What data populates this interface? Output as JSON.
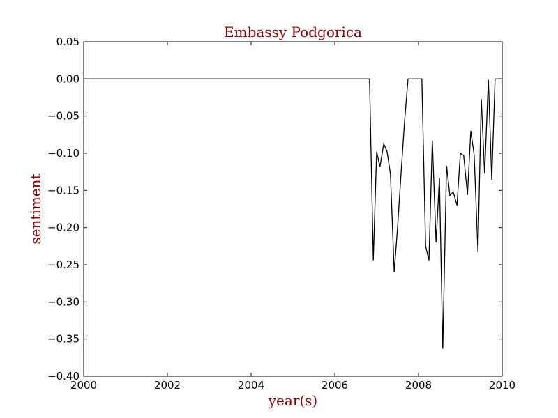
{
  "chart_data": {
    "type": "line",
    "title": "Embassy Podgorica",
    "xlabel": "year(s)",
    "ylabel": "sentiment",
    "xlim": [
      2000,
      2010
    ],
    "ylim": [
      -0.4,
      0.05
    ],
    "grid": false,
    "x_ticks": [
      2000,
      2002,
      2004,
      2006,
      2008,
      2010
    ],
    "y_ticks": [
      0.05,
      0.0,
      -0.05,
      -0.1,
      -0.15,
      -0.2,
      -0.25,
      -0.3,
      -0.35,
      -0.4
    ],
    "x_tick_labels": [
      "2000",
      "2002",
      "2004",
      "2006",
      "2008",
      "2010"
    ],
    "y_tick_labels": [
      "0.05",
      "0.00",
      "−0.05",
      "−0.10",
      "−0.15",
      "−0.20",
      "−0.25",
      "−0.30",
      "−0.35",
      "−0.40"
    ],
    "colors": {
      "title": "#8b0000",
      "line": "#000000",
      "axes": "#000000"
    },
    "series": [
      {
        "x": [
          2000.0,
          2006.83,
          2006.92,
          2007.0,
          2007.08,
          2007.17,
          2007.25,
          2007.33,
          2007.42,
          2007.5,
          2007.58,
          2007.67,
          2007.75,
          2007.83,
          2007.92,
          2008.0,
          2008.08,
          2008.17,
          2008.25,
          2008.33,
          2008.42,
          2008.5,
          2008.58,
          2008.67,
          2008.75,
          2008.83,
          2008.92,
          2009.0,
          2009.08,
          2009.17,
          2009.25,
          2009.33,
          2009.42,
          2009.5,
          2009.58,
          2009.67,
          2009.75,
          2009.83,
          2009.92,
          2010.0
        ],
        "y": [
          0.0,
          0.0,
          -0.244,
          -0.098,
          -0.118,
          -0.087,
          -0.098,
          -0.128,
          -0.26,
          -0.2,
          -0.13,
          -0.055,
          0.0,
          0.0,
          0.0,
          0.0,
          0.0,
          -0.225,
          -0.244,
          -0.083,
          -0.22,
          -0.133,
          -0.363,
          -0.117,
          -0.157,
          -0.152,
          -0.17,
          -0.1,
          -0.103,
          -0.156,
          -0.07,
          -0.102,
          -0.233,
          -0.027,
          -0.127,
          -0.001,
          -0.136,
          0.0,
          0.0,
          0.0
        ]
      }
    ]
  }
}
